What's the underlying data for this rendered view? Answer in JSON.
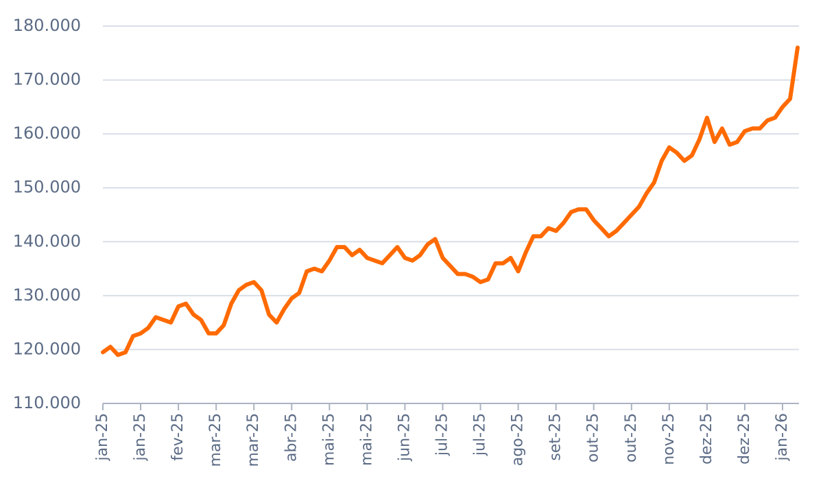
{
  "chart_data": {
    "type": "line",
    "categories": [
      "jan-25",
      null,
      null,
      null,
      null,
      "jan-25",
      null,
      null,
      null,
      null,
      "fev-25",
      null,
      null,
      null,
      null,
      "mar-25",
      null,
      null,
      null,
      null,
      "mar-25",
      null,
      null,
      null,
      null,
      "abr-25",
      null,
      null,
      null,
      null,
      "mai-25",
      null,
      null,
      null,
      null,
      "mai-25",
      null,
      null,
      null,
      null,
      "jun-25",
      null,
      null,
      null,
      null,
      "jul-25",
      null,
      null,
      null,
      null,
      "jul-25",
      null,
      null,
      null,
      null,
      "ago-25",
      null,
      null,
      null,
      null,
      "set-25",
      null,
      null,
      null,
      null,
      "out-25",
      null,
      null,
      null,
      null,
      "out-25",
      null,
      null,
      null,
      null,
      "nov-25",
      null,
      null,
      null,
      null,
      "dez-25",
      null,
      null,
      null,
      null,
      "dez-25",
      null,
      null,
      null,
      null,
      "jan-26",
      null,
      null
    ],
    "values": [
      119500,
      120500,
      119000,
      119500,
      122500,
      123000,
      124000,
      126000,
      125500,
      125000,
      128000,
      128500,
      126500,
      125500,
      123000,
      123000,
      124500,
      128500,
      131000,
      132000,
      132500,
      131000,
      126500,
      125000,
      127500,
      129500,
      130500,
      134500,
      135000,
      134500,
      136500,
      139000,
      139000,
      137500,
      138500,
      137000,
      136500,
      136000,
      137500,
      139000,
      137000,
      136500,
      137500,
      139500,
      140500,
      137000,
      135500,
      134000,
      134000,
      133500,
      132500,
      133000,
      136000,
      136000,
      137000,
      134500,
      138000,
      141000,
      141000,
      142500,
      142000,
      143500,
      145500,
      146000,
      146000,
      144000,
      142500,
      141000,
      142000,
      143500,
      145000,
      146500,
      149000,
      151000,
      155000,
      157500,
      156500,
      155000,
      156000,
      159000,
      163000,
      158500,
      161000,
      158000,
      158500,
      160500,
      161000,
      161000,
      162500,
      163000,
      165000,
      166500,
      176000
    ],
    "color": "#ff6a00",
    "ylim": [
      110000,
      180000
    ],
    "yticks": [
      {
        "value": 110000,
        "label": "110.000"
      },
      {
        "value": 120000,
        "label": "120.000"
      },
      {
        "value": 130000,
        "label": "130.000"
      },
      {
        "value": 140000,
        "label": "140.000"
      },
      {
        "value": 150000,
        "label": "150.000"
      },
      {
        "value": 160000,
        "label": "160.000"
      },
      {
        "value": 170000,
        "label": "170.000"
      },
      {
        "value": 180000,
        "label": "180.000"
      }
    ],
    "grid": true
  }
}
